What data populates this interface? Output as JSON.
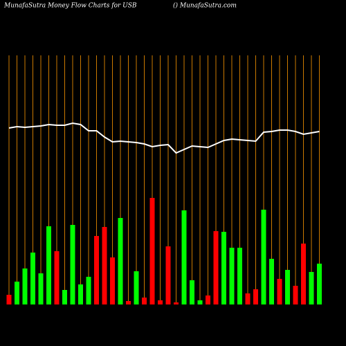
{
  "chart_data": {
    "type": "bar",
    "title": "MunafaSutra  Money Flow  Charts for USB",
    "subtitle": "() MunafaSutra.com",
    "categories": [
      null,
      null,
      null,
      null,
      null,
      null,
      null,
      null,
      null,
      null,
      null,
      null,
      null,
      null,
      null,
      null,
      null,
      null,
      null,
      null,
      null,
      null,
      null,
      null,
      null,
      null,
      null,
      null,
      null,
      null,
      null,
      null,
      null,
      null,
      null,
      null,
      null,
      null,
      null,
      null
    ],
    "values": [
      14,
      33,
      52,
      75,
      45,
      113,
      77,
      21,
      115,
      29,
      40,
      99,
      112,
      68,
      125,
      5,
      48,
      10,
      154,
      6,
      84,
      3,
      136,
      35,
      6,
      13,
      106,
      105,
      82,
      82,
      16,
      22,
      137,
      66,
      37,
      50,
      27,
      88,
      47,
      59
    ],
    "bar_colors": [
      "#ff0000",
      "#00ff00",
      "#00ff00",
      "#00ff00",
      "#00ff00",
      "#00ff00",
      "#ff0000",
      "#00ff00",
      "#00ff00",
      "#00ff00",
      "#00ff00",
      "#ff0000",
      "#ff0000",
      "#ff0000",
      "#00ff00",
      "#ff0000",
      "#00ff00",
      "#ff0000",
      "#ff0000",
      "#ff0000",
      "#ff0000",
      "#ff0000",
      "#00ff00",
      "#00ff00",
      "#00ff00",
      "#ff0000",
      "#ff0000",
      "#00ff00",
      "#00ff00",
      "#00ff00",
      "#ff0000",
      "#ff0000",
      "#00ff00",
      "#00ff00",
      "#ff0000",
      "#00ff00",
      "#ff0000",
      "#ff0000",
      "#00ff00",
      "#00ff00"
    ],
    "line": {
      "color": "#ffffff",
      "values": [
        255,
        257,
        256,
        257,
        258,
        260,
        259,
        259,
        262,
        260,
        251,
        251,
        242,
        235,
        236,
        235,
        234,
        232,
        228,
        230,
        231,
        219,
        224,
        229,
        228,
        227,
        232,
        237,
        239,
        238,
        237,
        236,
        249,
        250,
        252,
        252,
        250,
        246,
        248,
        250
      ]
    },
    "grid_color": "#cc7a00",
    "ylim": [
      0,
      360
    ]
  }
}
